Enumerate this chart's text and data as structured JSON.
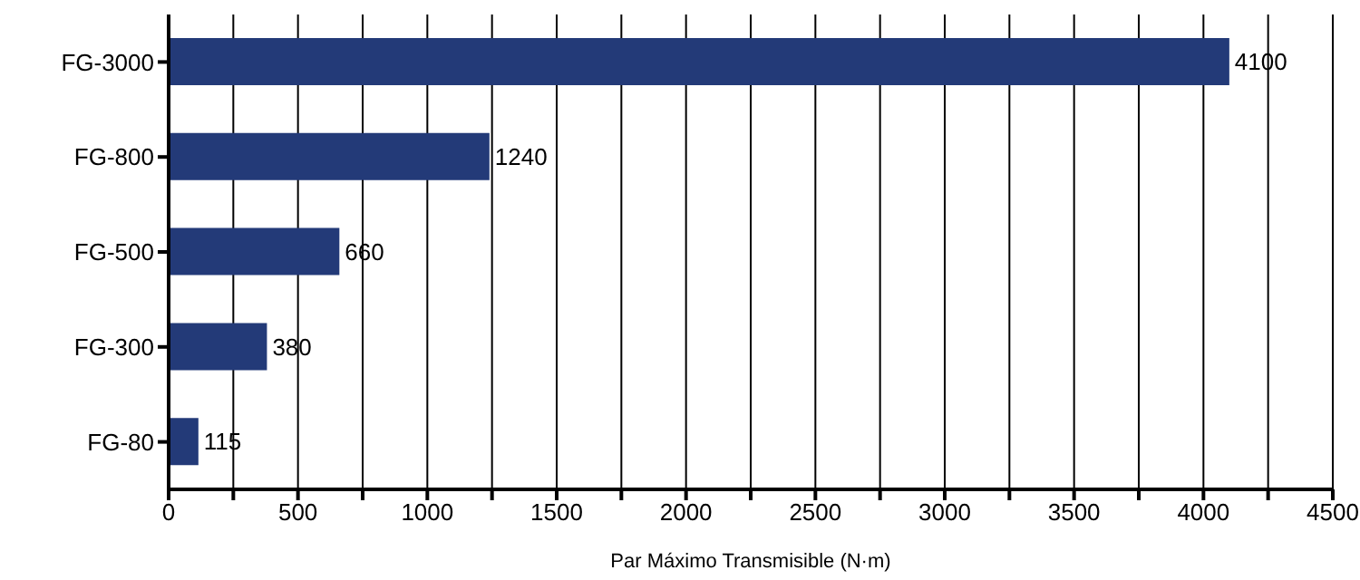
{
  "chart_data": {
    "type": "bar",
    "orientation": "horizontal",
    "xlabel": "Par Máximo Transmisible (N·m)",
    "categories": [
      "FG-3000",
      "FG-800",
      "FG-500",
      "FG-300",
      "FG-80"
    ],
    "values": [
      4100,
      1240,
      660,
      380,
      115
    ],
    "color": "#233a78",
    "xlim": [
      0,
      4500
    ],
    "xticks": [
      0,
      {
        "value": 250,
        "label": null
      },
      500,
      {
        "value": 750,
        "label": null
      },
      1000,
      {
        "value": 1250,
        "label": null
      },
      1500,
      {
        "value": 1750,
        "label": null
      },
      2000,
      {
        "value": 2250,
        "label": null
      },
      2500,
      {
        "value": 2750,
        "label": null
      },
      3000,
      {
        "value": 3250,
        "label": null
      },
      3500,
      {
        "value": 3750,
        "label": null
      },
      4000,
      {
        "value": 4250,
        "label": null
      },
      4500
    ],
    "grid": "x",
    "data_labels": true
  }
}
